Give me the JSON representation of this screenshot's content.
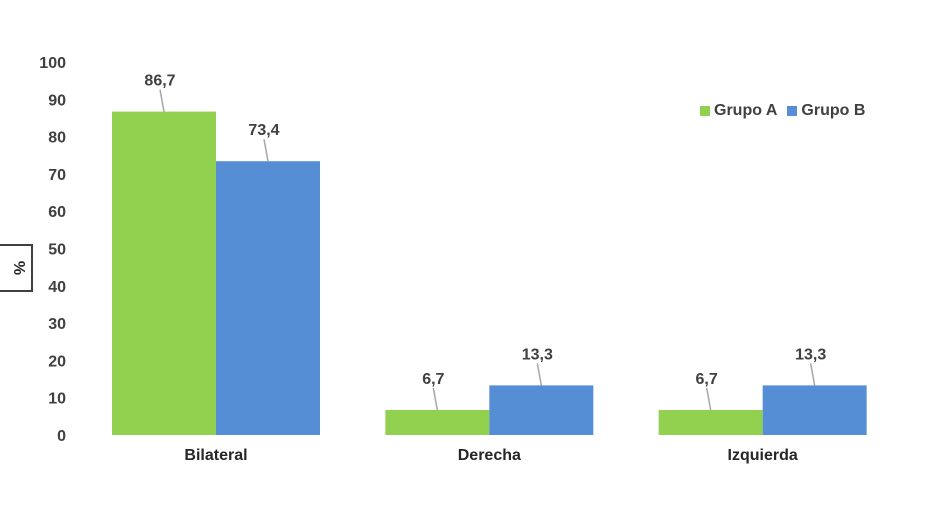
{
  "chart_data": {
    "type": "bar",
    "categories": [
      "Bilateral",
      "Derecha",
      "Izquierda"
    ],
    "series": [
      {
        "name": "Grupo A",
        "color": "#92d050",
        "values": [
          86.7,
          6.7,
          6.7
        ],
        "labels": [
          "86,7",
          "6,7",
          "6,7"
        ]
      },
      {
        "name": "Grupo B",
        "color": "#558ed5",
        "values": [
          73.4,
          13.3,
          13.3
        ],
        "labels": [
          "73,4",
          "13,3",
          "13,3"
        ]
      }
    ],
    "ylabel": "%",
    "ylim": [
      0,
      100
    ],
    "yticks": [
      0,
      10,
      20,
      30,
      40,
      50,
      60,
      70,
      80,
      90,
      100
    ],
    "grid": false,
    "legend_position": "top-right"
  }
}
